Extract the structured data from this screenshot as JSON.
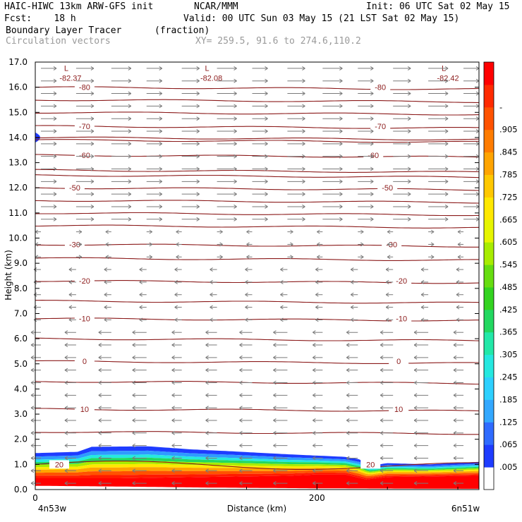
{
  "header": {
    "model": "HAIC-HIWC 13km ARW-GFS init",
    "org": "NCAR/MMM",
    "init": "Init: 06 UTC Sat 02 May 15",
    "fcst": "Fcst:    18 h",
    "valid": "Valid: 00 UTC Sun 03 May 15 (21 LST Sat 02 May 15)",
    "field": "Boundary Layer Tracer",
    "units": "(fraction)",
    "vectors": "Circulation vectors",
    "xy": "XY= 259.5, 91.6 to 274.6,110.2"
  },
  "colors": {
    "contour": "#8b1a1a",
    "vector": "#7a7a7a",
    "colorbar": [
      "#ffffff",
      "#1e3cff",
      "#2f6bff",
      "#33a8ff",
      "#2dd0ff",
      "#25e8e0",
      "#22e8a8",
      "#22d860",
      "#33d320",
      "#66dd10",
      "#a8ec00",
      "#e6f500",
      "#ffe800",
      "#ffc800",
      "#ffa400",
      "#ff7c00",
      "#ff5200",
      "#ff2a00",
      "#ff0000"
    ]
  },
  "chart_data": {
    "type": "heatmap",
    "title": "Boundary Layer Tracer",
    "xlabel": "Distance (km)",
    "ylabel": "Height (km)",
    "x_start_label": "4n53w",
    "x_end_label": "6n51w",
    "xlim": [
      0,
      315
    ],
    "ylim": [
      0,
      17
    ],
    "x_ticks": [
      {
        "value": 0,
        "label": "0"
      },
      {
        "value": 200,
        "label": "200"
      }
    ],
    "y_ticks": [
      "0.0",
      "1.0",
      "2.0",
      "3.0",
      "4.0",
      "5.0",
      "6.0",
      "7.0",
      "8.0",
      "9.0",
      "10.0",
      "11.0",
      "12.0",
      "13.0",
      "14.0",
      "15.0",
      "16.0",
      "17.0"
    ],
    "colorbar_labels": [
      ".005",
      ".065",
      ".125",
      ".185",
      ".245",
      ".305",
      ".365",
      ".425",
      ".485",
      ".545",
      ".605",
      ".665",
      ".725",
      ".785",
      ".845",
      ".905",
      "-"
    ],
    "boundary_layer_top_km": [
      [
        0,
        1.45
      ],
      [
        30,
        1.5
      ],
      [
        40,
        1.7
      ],
      [
        80,
        1.72
      ],
      [
        110,
        1.6
      ],
      [
        140,
        1.52
      ],
      [
        180,
        1.4
      ],
      [
        200,
        1.35
      ],
      [
        220,
        1.3
      ],
      [
        230,
        1.2
      ],
      [
        238,
        0.95
      ],
      [
        250,
        1.05
      ],
      [
        280,
        1.0
      ],
      [
        315,
        1.1
      ]
    ],
    "tracer_high_km": [
      [
        0,
        0.45
      ],
      [
        60,
        0.45
      ],
      [
        120,
        0.5
      ],
      [
        180,
        0.55
      ],
      [
        200,
        0.6
      ],
      [
        220,
        0.6
      ],
      [
        235,
        0.4
      ],
      [
        250,
        0.5
      ],
      [
        315,
        0.55
      ]
    ],
    "tracer_low_km": [
      [
        0,
        0.15
      ],
      [
        60,
        0.12
      ],
      [
        120,
        0.08
      ],
      [
        200,
        0.05
      ],
      [
        315,
        0.03
      ]
    ],
    "temperature_contours": [
      {
        "level": "-80",
        "height_km": 16.0,
        "label_x_km": [
          35,
          245
        ]
      },
      {
        "level": "-70",
        "height_km": 14.45,
        "label_x_km": [
          35,
          245
        ]
      },
      {
        "level": "-60",
        "height_km": 13.3,
        "label_x_km": [
          35,
          240
        ]
      },
      {
        "level": "-50",
        "height_km": 12.0,
        "label_x_km": [
          28,
          250
        ]
      },
      {
        "level": "-30",
        "height_km": 9.75,
        "label_x_km": [
          28,
          253
        ]
      },
      {
        "level": "-20",
        "height_km": 8.3,
        "label_x_km": [
          35,
          260
        ]
      },
      {
        "level": "-10",
        "height_km": 6.8,
        "label_x_km": [
          35,
          260
        ]
      },
      {
        "level": "0",
        "height_km": 5.1,
        "label_x_km": [
          35,
          258
        ]
      },
      {
        "level": "10",
        "height_km": 3.2,
        "label_x_km": [
          35,
          258
        ]
      },
      {
        "level": "20",
        "height_km": 1.0,
        "label_x_km": [
          17,
          238
        ]
      }
    ],
    "extra_contours_km": [
      15.5,
      15.0,
      14.0,
      13.9,
      12.7,
      12.5,
      11.5,
      11.0,
      10.5,
      9.2,
      7.5,
      6.0,
      4.3,
      2.3
    ],
    "lows": [
      {
        "marker": "L",
        "value": "-82.37",
        "x_km": 25,
        "y_km": 16.6
      },
      {
        "marker": "L",
        "value": "-82.08",
        "x_km": 125,
        "y_km": 16.6
      },
      {
        "marker": "L",
        "value": "-82.42",
        "x_km": 293,
        "y_km": 16.6
      }
    ]
  }
}
